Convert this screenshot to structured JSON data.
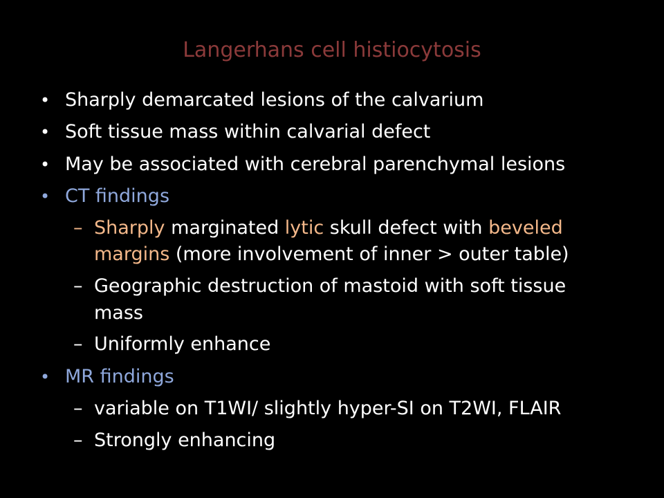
{
  "title": "Langerhans cell histiocytosis",
  "colors": {
    "title": "#8b3a3a",
    "blue": "#8fa8dc",
    "orange": "#f4b88a",
    "text": "#ffffff"
  },
  "bullets": [
    "Sharply demarcated lesions of the calvarium",
    "Soft tissue mass within calvarial defect",
    "May be associated with cerebral parenchymal lesions"
  ],
  "ct": {
    "heading": "CT findings",
    "item1": {
      "part1": "Sharply",
      "part2": " marginated ",
      "part3": "lytic",
      "part4": " skull defect with ",
      "part5": "beveled",
      "part6": "margins",
      "part7": " (more involvement of inner > outer table)"
    },
    "item2": {
      "line1": "Geographic destruction of mastoid with soft tissue",
      "line2": "mass"
    },
    "item3": "Uniformly enhance"
  },
  "mr": {
    "heading": "MR findings",
    "item1": "variable on T1WI/ slightly hyper-SI on T2WI, FLAIR",
    "item2": "Strongly enhancing"
  },
  "glyphs": {
    "bullet": "•",
    "dash": "–"
  }
}
